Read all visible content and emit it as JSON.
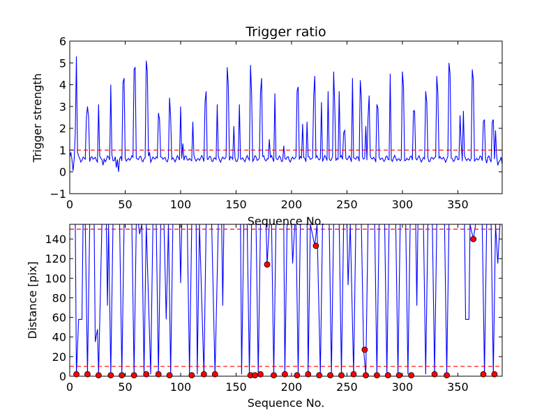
{
  "chart_data": [
    {
      "type": "line",
      "title": "Trigger ratio",
      "xlabel": "Sequence No.",
      "ylabel": "Trigger strength",
      "xlim": [
        0,
        390
      ],
      "ylim": [
        -1,
        6
      ],
      "xticks": [
        0,
        50,
        100,
        150,
        200,
        250,
        300,
        350
      ],
      "yticks": [
        -1,
        0,
        1,
        2,
        3,
        4,
        5,
        6
      ],
      "xtick_labels": [
        "0",
        "50",
        "100",
        "150",
        "200",
        "250",
        "300",
        "350"
      ],
      "ytick_labels": [
        "−1",
        "0",
        "1",
        "2",
        "3",
        "4",
        "5",
        "6"
      ],
      "grid": false,
      "line_color": "#0000ff",
      "threshold": {
        "y": 1,
        "color": "#ff0000",
        "style": "dashed"
      },
      "baseline": 0.6,
      "peaks": [
        [
          1,
          0.9
        ],
        [
          3,
          0.05
        ],
        [
          5,
          1.8
        ],
        [
          6,
          5.3
        ],
        [
          7,
          0.9
        ],
        [
          15,
          2.5
        ],
        [
          16,
          3.0
        ],
        [
          17,
          2.5
        ],
        [
          26,
          3.1
        ],
        [
          30,
          0.3
        ],
        [
          37,
          4.0
        ],
        [
          38,
          0.8
        ],
        [
          42,
          0.2
        ],
        [
          44,
          0.0
        ],
        [
          46,
          0.7
        ],
        [
          48,
          4.1
        ],
        [
          49,
          4.3
        ],
        [
          58,
          4.7
        ],
        [
          59,
          4.8
        ],
        [
          69,
          5.1
        ],
        [
          70,
          4.6
        ],
        [
          72,
          0.9
        ],
        [
          80,
          2.7
        ],
        [
          81,
          2.4
        ],
        [
          90,
          3.4
        ],
        [
          91,
          2.5
        ],
        [
          100,
          3.0
        ],
        [
          102,
          1.3
        ],
        [
          111,
          2.3
        ],
        [
          122,
          3.2
        ],
        [
          123,
          3.7
        ],
        [
          133,
          3.1
        ],
        [
          142,
          4.8
        ],
        [
          143,
          4.0
        ],
        [
          148,
          2.1
        ],
        [
          153,
          3.1
        ],
        [
          163,
          4.9
        ],
        [
          164,
          3.6
        ],
        [
          172,
          3.6
        ],
        [
          173,
          4.3
        ],
        [
          180,
          1.5
        ],
        [
          185,
          3.6
        ],
        [
          193,
          1.2
        ],
        [
          205,
          3.7
        ],
        [
          206,
          3.9
        ],
        [
          210,
          2.2
        ],
        [
          214,
          2.3
        ],
        [
          220,
          3.5
        ],
        [
          221,
          4.4
        ],
        [
          227,
          3.2
        ],
        [
          233,
          3.7
        ],
        [
          238,
          4.6
        ],
        [
          239,
          3.0
        ],
        [
          243,
          3.7
        ],
        [
          247,
          1.8
        ],
        [
          248,
          1.9
        ],
        [
          255,
          4.3
        ],
        [
          262,
          4.2
        ],
        [
          263,
          3.4
        ],
        [
          267,
          2.1
        ],
        [
          269,
          2.5
        ],
        [
          270,
          3.5
        ],
        [
          277,
          3.1
        ],
        [
          278,
          2.9
        ],
        [
          289,
          4.5
        ],
        [
          300,
          4.6
        ],
        [
          301,
          3.9
        ],
        [
          310,
          2.8
        ],
        [
          311,
          2.8
        ],
        [
          321,
          3.7
        ],
        [
          322,
          3.2
        ],
        [
          331,
          4.4
        ],
        [
          332,
          3.6
        ],
        [
          342,
          5.0
        ],
        [
          343,
          4.5
        ],
        [
          352,
          2.6
        ],
        [
          353,
          1.3
        ],
        [
          355,
          2.8
        ],
        [
          363,
          4.7
        ],
        [
          364,
          4.2
        ],
        [
          373,
          2.3
        ],
        [
          374,
          2.4
        ],
        [
          376,
          0.4
        ],
        [
          381,
          2.3
        ],
        [
          382,
          2.4
        ],
        [
          384,
          1.9
        ],
        [
          386,
          0.3
        ],
        [
          390,
          0.35
        ]
      ]
    },
    {
      "type": "line",
      "title": "",
      "xlabel": "Sequence No.",
      "ylabel": "Distance [pix]",
      "xlim": [
        0,
        390
      ],
      "ylim": [
        0,
        155
      ],
      "xticks": [
        0,
        50,
        100,
        150,
        200,
        250,
        300,
        350
      ],
      "yticks": [
        0,
        20,
        40,
        60,
        80,
        100,
        120,
        140
      ],
      "xtick_labels": [
        "0",
        "50",
        "100",
        "150",
        "200",
        "250",
        "300",
        "350"
      ],
      "ytick_labels": [
        "0",
        "20",
        "40",
        "60",
        "80",
        "100",
        "120",
        "140"
      ],
      "grid": false,
      "line_color": "#0000ff",
      "marker_color": "#ff0000",
      "thresholds": [
        {
          "y": 150,
          "color": "#ff0000",
          "style": "dashed"
        },
        {
          "y": 10,
          "color": "#ff0000",
          "style": "dashed"
        }
      ],
      "line_points": [
        [
          0,
          155
        ],
        [
          5,
          155
        ],
        [
          6,
          2
        ],
        [
          8,
          58
        ],
        [
          11,
          58
        ],
        [
          12,
          155
        ],
        [
          14,
          155
        ],
        [
          16,
          2
        ],
        [
          18,
          155
        ],
        [
          22,
          155
        ],
        [
          23,
          35
        ],
        [
          25,
          48
        ],
        [
          26,
          2
        ],
        [
          29,
          155
        ],
        [
          33,
          155
        ],
        [
          34,
          72
        ],
        [
          35,
          155
        ],
        [
          37,
          2
        ],
        [
          39,
          155
        ],
        [
          45,
          155
        ],
        [
          47,
          2
        ],
        [
          49,
          155
        ],
        [
          56,
          155
        ],
        [
          58,
          2
        ],
        [
          60,
          155
        ],
        [
          62,
          155
        ],
        [
          63,
          145
        ],
        [
          65,
          155
        ],
        [
          67,
          2
        ],
        [
          69,
          155
        ],
        [
          73,
          2
        ],
        [
          75,
          155
        ],
        [
          78,
          155
        ],
        [
          80,
          2
        ],
        [
          82,
          155
        ],
        [
          85,
          155
        ],
        [
          87,
          58
        ],
        [
          89,
          155
        ],
        [
          91,
          2
        ],
        [
          93,
          155
        ],
        [
          99,
          155
        ],
        [
          100,
          95
        ],
        [
          101,
          155
        ],
        [
          106,
          155
        ],
        [
          108,
          2
        ],
        [
          110,
          155
        ],
        [
          114,
          155
        ],
        [
          115,
          2
        ],
        [
          117,
          155
        ],
        [
          121,
          2
        ],
        [
          123,
          155
        ],
        [
          128,
          155
        ],
        [
          131,
          2
        ],
        [
          134,
          155
        ],
        [
          137,
          155
        ],
        [
          138,
          72
        ],
        [
          139,
          155
        ],
        [
          154,
          155
        ],
        [
          155,
          2
        ],
        [
          157,
          155
        ],
        [
          160,
          155
        ],
        [
          162,
          2
        ],
        [
          164,
          155
        ],
        [
          168,
          155
        ],
        [
          170,
          2
        ],
        [
          172,
          155
        ],
        [
          177,
          155
        ],
        [
          178,
          114
        ],
        [
          180,
          155
        ],
        [
          182,
          155
        ],
        [
          184,
          2
        ],
        [
          186,
          155
        ],
        [
          193,
          155
        ],
        [
          194,
          2
        ],
        [
          196,
          155
        ],
        [
          200,
          155
        ],
        [
          201,
          115
        ],
        [
          203,
          155
        ],
        [
          204,
          155
        ],
        [
          206,
          2
        ],
        [
          208,
          155
        ],
        [
          214,
          155
        ],
        [
          215,
          2
        ],
        [
          217,
          155
        ],
        [
          221,
          133
        ],
        [
          223,
          155
        ],
        [
          226,
          2
        ],
        [
          228,
          155
        ],
        [
          234,
          155
        ],
        [
          236,
          2
        ],
        [
          238,
          155
        ],
        [
          243,
          155
        ],
        [
          245,
          2
        ],
        [
          247,
          155
        ],
        [
          250,
          155
        ],
        [
          251,
          93
        ],
        [
          253,
          155
        ],
        [
          256,
          2
        ],
        [
          258,
          155
        ],
        [
          263,
          155
        ],
        [
          265,
          27
        ],
        [
          267,
          2
        ],
        [
          269,
          155
        ],
        [
          275,
          155
        ],
        [
          277,
          2
        ],
        [
          279,
          155
        ],
        [
          284,
          155
        ],
        [
          286,
          2
        ],
        [
          288,
          155
        ],
        [
          294,
          155
        ],
        [
          296,
          2
        ],
        [
          298,
          155
        ],
        [
          303,
          155
        ],
        [
          305,
          2
        ],
        [
          307,
          155
        ],
        [
          312,
          155
        ],
        [
          313,
          72
        ],
        [
          314,
          155
        ],
        [
          319,
          155
        ],
        [
          321,
          2
        ],
        [
          323,
          155
        ],
        [
          327,
          155
        ],
        [
          329,
          2
        ],
        [
          331,
          155
        ],
        [
          338,
          155
        ],
        [
          340,
          2
        ],
        [
          342,
          155
        ],
        [
          356,
          155
        ],
        [
          357,
          58
        ],
        [
          360,
          58
        ],
        [
          361,
          155
        ],
        [
          364,
          140
        ],
        [
          366,
          155
        ],
        [
          372,
          155
        ],
        [
          374,
          2
        ],
        [
          376,
          155
        ],
        [
          380,
          155
        ],
        [
          382,
          2
        ],
        [
          384,
          155
        ],
        [
          386,
          115
        ],
        [
          388,
          155
        ]
      ],
      "markers": [
        [
          6,
          2
        ],
        [
          16,
          2
        ],
        [
          26,
          1
        ],
        [
          37,
          1
        ],
        [
          47,
          1
        ],
        [
          58,
          1
        ],
        [
          69,
          2
        ],
        [
          80,
          2
        ],
        [
          90,
          1
        ],
        [
          110,
          1
        ],
        [
          121,
          2
        ],
        [
          131,
          2
        ],
        [
          163,
          1
        ],
        [
          167,
          1
        ],
        [
          172,
          2
        ],
        [
          178,
          114
        ],
        [
          184,
          1
        ],
        [
          194,
          2
        ],
        [
          205,
          1
        ],
        [
          215,
          2
        ],
        [
          222,
          133
        ],
        [
          225,
          1
        ],
        [
          235,
          1
        ],
        [
          245,
          1
        ],
        [
          256,
          2
        ],
        [
          266,
          27
        ],
        [
          267,
          1
        ],
        [
          277,
          1
        ],
        [
          287,
          1
        ],
        [
          297,
          1
        ],
        [
          308,
          1
        ],
        [
          329,
          2
        ],
        [
          340,
          1
        ],
        [
          364,
          140
        ],
        [
          373,
          2
        ],
        [
          383,
          2
        ]
      ]
    }
  ]
}
